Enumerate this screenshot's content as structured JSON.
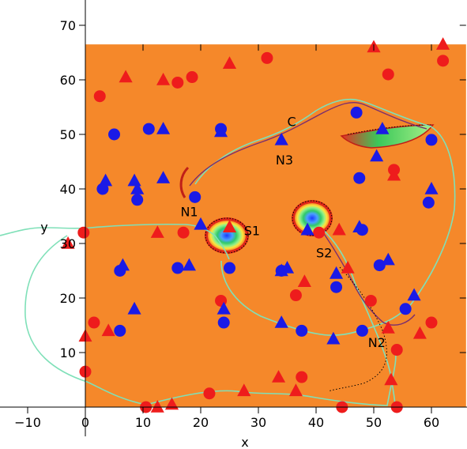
{
  "chart_data": {
    "type": "scatter",
    "title": "",
    "xlabel": "x",
    "ylabel": "y",
    "xlim": [
      -15,
      66
    ],
    "ylim": [
      -5,
      70
    ],
    "field_extent": {
      "x": [
        0,
        66
      ],
      "y": [
        0,
        66.5
      ]
    },
    "x_ticks": [
      "−10",
      "0",
      "10",
      "20",
      "30",
      "40",
      "50",
      "60"
    ],
    "x_tick_values": [
      -10,
      0,
      10,
      20,
      30,
      40,
      50,
      60
    ],
    "y_ticks": [
      "10",
      "20",
      "30",
      "40",
      "50",
      "60",
      "70"
    ],
    "y_tick_values": [
      10,
      20,
      30,
      40,
      50,
      60,
      70
    ],
    "grid": false,
    "background_color": "#f5882a",
    "colors": {
      "red": "#ee1c1c",
      "blue": "#1a1ae6",
      "separatrix": "#7fe0b8",
      "manifold": "#7a2e6e"
    },
    "series": [
      {
        "marker": "circle",
        "color": "red",
        "points": [
          [
            -0.3,
            32
          ],
          [
            2.5,
            57
          ],
          [
            0,
            6.5
          ],
          [
            1.5,
            15.5
          ],
          [
            10.5,
            0
          ],
          [
            16,
            59.5
          ],
          [
            18.5,
            60.5
          ],
          [
            17,
            32
          ],
          [
            21.5,
            2.5
          ],
          [
            23.5,
            19.5
          ],
          [
            31.5,
            64
          ],
          [
            37.5,
            5.5
          ],
          [
            36.5,
            20.5
          ],
          [
            40.5,
            32
          ],
          [
            44.5,
            0
          ],
          [
            49.5,
            19.5
          ],
          [
            52.5,
            61
          ],
          [
            53.5,
            43.5
          ],
          [
            54,
            0
          ],
          [
            54,
            10.5
          ],
          [
            60,
            15.5
          ],
          [
            62,
            63.5
          ]
        ]
      },
      {
        "marker": "triangle",
        "color": "red",
        "points": [
          [
            -3,
            30
          ],
          [
            0,
            13
          ],
          [
            4,
            14
          ],
          [
            7,
            60.5
          ],
          [
            13.5,
            60
          ],
          [
            12.5,
            0
          ],
          [
            15,
            0.5
          ],
          [
            12.5,
            32
          ],
          [
            25,
            63
          ],
          [
            27.5,
            3
          ],
          [
            33.5,
            5.5
          ],
          [
            36.5,
            3
          ],
          [
            38,
            23
          ],
          [
            44,
            32.5
          ],
          [
            45.5,
            25.5
          ],
          [
            50,
            66
          ],
          [
            52.5,
            14.5
          ],
          [
            53,
            5
          ],
          [
            53.5,
            42.5
          ],
          [
            58,
            13.5
          ],
          [
            62,
            66.5
          ],
          [
            25,
            33
          ]
        ]
      },
      {
        "marker": "circle",
        "color": "blue",
        "points": [
          [
            3,
            40
          ],
          [
            5,
            50
          ],
          [
            6,
            25
          ],
          [
            6,
            14
          ],
          [
            9,
            38
          ],
          [
            11,
            51
          ],
          [
            16,
            25.5
          ],
          [
            19,
            38.5
          ],
          [
            23.5,
            51
          ],
          [
            24,
            15.5
          ],
          [
            25,
            25.5
          ],
          [
            34,
            25
          ],
          [
            37.5,
            14
          ],
          [
            43.5,
            22
          ],
          [
            47.5,
            42
          ],
          [
            48,
            14
          ],
          [
            48,
            32.5
          ],
          [
            47,
            54
          ],
          [
            51,
            26
          ],
          [
            55.5,
            18
          ],
          [
            59.5,
            37.5
          ],
          [
            60,
            49
          ]
        ]
      },
      {
        "marker": "triangle",
        "color": "blue",
        "points": [
          [
            3.5,
            41.5
          ],
          [
            8.5,
            41.5
          ],
          [
            6.5,
            26
          ],
          [
            8.5,
            18
          ],
          [
            9,
            40
          ],
          [
            13.5,
            51
          ],
          [
            13.5,
            42
          ],
          [
            18,
            26
          ],
          [
            20,
            33.5
          ],
          [
            23.5,
            50.5
          ],
          [
            24,
            18
          ],
          [
            34,
            25
          ],
          [
            34,
            49
          ],
          [
            35,
            25.5
          ],
          [
            34,
            15.5
          ],
          [
            38.5,
            32.5
          ],
          [
            43,
            12.5
          ],
          [
            43.5,
            24.5
          ],
          [
            47.5,
            33
          ],
          [
            50.5,
            46
          ],
          [
            51.5,
            51
          ],
          [
            52.5,
            27
          ],
          [
            57,
            20.5
          ],
          [
            60,
            40
          ]
        ]
      }
    ],
    "annotations": [
      {
        "text": "C",
        "x": 35,
        "y": 51.5
      },
      {
        "text": "N3",
        "x": 33,
        "y": 44.5
      },
      {
        "text": "N1",
        "x": 16.5,
        "y": 35
      },
      {
        "text": "S1",
        "x": 27.5,
        "y": 31.5
      },
      {
        "text": "S2",
        "x": 40,
        "y": 27.5
      },
      {
        "text": "N2",
        "x": 49,
        "y": 11
      }
    ]
  }
}
